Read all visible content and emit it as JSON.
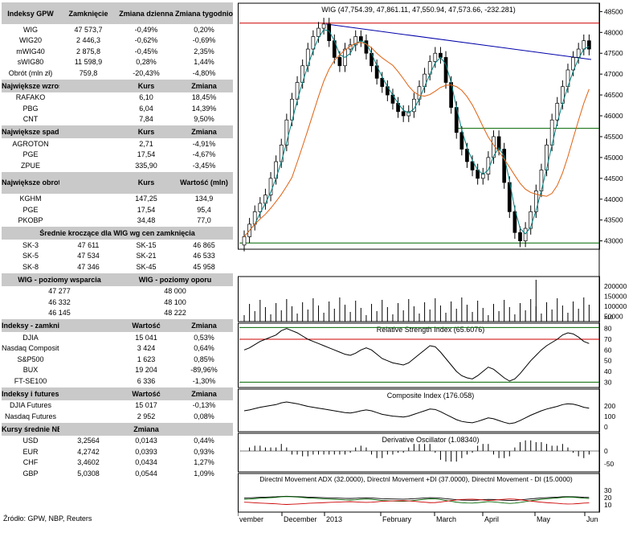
{
  "tables": [
    {
      "header": [
        "Indeksy GPW",
        "Zamknięcie",
        "Zmiana dzienna",
        "Zmiana tygodniowa"
      ],
      "tall": true,
      "rows": [
        [
          "WIG",
          "47 573,7",
          "-0,49%",
          "0,20%"
        ],
        [
          "WIG20",
          "2 446,3",
          "-0,62%",
          "-0,69%"
        ],
        [
          "mWIG40",
          "2 875,8",
          "-0,45%",
          "2,35%"
        ],
        [
          "sWIG80",
          "11 598,9",
          "0,28%",
          "1,44%"
        ],
        [
          "Obrót (mln zł)",
          "759,8",
          "-20,43%",
          "-4,80%"
        ]
      ]
    },
    {
      "header": [
        "Największe wzrosty",
        "",
        "Kurs",
        "Zmiana"
      ],
      "rows": [
        [
          "RAFAKO",
          "",
          "6,10",
          "18,45%"
        ],
        [
          "PBG",
          "",
          "6,04",
          "14,39%"
        ],
        [
          "CNT",
          "",
          "7,84",
          "9,50%"
        ]
      ]
    },
    {
      "header": [
        "Największe spadki",
        "",
        "Kurs",
        "Zmiana"
      ],
      "rows": [
        [
          "AGROTON",
          "",
          "2,71",
          "-4,91%"
        ],
        [
          "PGE",
          "",
          "17,54",
          "-4,67%"
        ],
        [
          "ZPUE",
          "",
          "335,90",
          "-3,45%"
        ]
      ]
    },
    {
      "header": [
        "Największe obroty",
        "",
        "Kurs",
        "Wartość (mln)"
      ],
      "tall": true,
      "rows": [
        [
          "KGHM",
          "",
          "147,25",
          "134,9"
        ],
        [
          "PGE",
          "",
          "17,54",
          "95,4"
        ],
        [
          "PKOBP",
          "",
          "34,48",
          "77,0"
        ]
      ]
    },
    {
      "header": [
        "Średnie kroczące dla WIG wg cen zamknięcia"
      ],
      "rows": [
        [
          "SK-3",
          "47 611",
          "SK-15",
          "46 865"
        ],
        [
          "SK-5",
          "47 534",
          "SK-21",
          "46 533"
        ],
        [
          "SK-8",
          "47 346",
          "SK-45",
          "45 958"
        ]
      ]
    },
    {
      "header": [
        "WIG - poziomy wsparcia",
        "WIG - poziomy oporu"
      ],
      "rows": [
        [
          "47 277",
          "48 000"
        ],
        [
          "46 332",
          "48 100"
        ],
        [
          "46 145",
          "48 222"
        ]
      ]
    },
    {
      "header": [
        "Indeksy - zamknięcia",
        "",
        "Wartość",
        "Zmiana"
      ],
      "rows": [
        [
          "DJIA",
          "",
          "15 041",
          "0,53%"
        ],
        [
          "Nasdaq Composite",
          "",
          "3 424",
          "0,64%"
        ],
        [
          "S&P500",
          "",
          "1 623",
          "0,85%"
        ],
        [
          "BUX",
          "",
          "19 204",
          "-89,96%"
        ],
        [
          "FT-SE100",
          "",
          "6 336",
          "-1,30%"
        ]
      ]
    },
    {
      "header": [
        "Indeksy i futures - bieżące",
        "",
        "Wartość",
        "Zmiana"
      ],
      "rows": [
        [
          "DJIA Futures",
          "",
          "15 017",
          "-0,13%"
        ],
        [
          "Nasdaq Futures",
          "",
          "2 952",
          "0,08%"
        ]
      ]
    },
    {
      "header": [
        "Kursy średnie NBP",
        "",
        "Zmiana",
        ""
      ],
      "rows": [
        [
          "USD",
          "3,2564",
          "0,0143",
          "0,44%"
        ],
        [
          "EUR",
          "4,2742",
          "0,0393",
          "0,93%"
        ],
        [
          "CHF",
          "3,4602",
          "0,0434",
          "1,27%"
        ],
        [
          "GBP",
          "5,0308",
          "0,0544",
          "1,09%"
        ]
      ]
    }
  ],
  "source": "Źródło: GPW, NBP, Reuters",
  "chart_data": [
    {
      "type": "candlestick",
      "title": "WIG (47,754.39, 47,861.11, 47,550.94, 47,573.66, -232.281)",
      "ylim": [
        42800,
        48700
      ],
      "yticks": [
        "48500",
        "48000",
        "47500",
        "47000",
        "46500",
        "46000",
        "45500",
        "45000",
        "44500",
        "44000",
        "43500",
        "43000"
      ],
      "xlabels": [
        "vember",
        "December",
        "2013",
        "February",
        "March",
        "April",
        "May",
        "Jun"
      ],
      "close": [
        43100,
        43400,
        43700,
        43900,
        44100,
        44500,
        44900,
        45300,
        45900,
        46400,
        46800,
        47200,
        47600,
        47900,
        48100,
        48200,
        47800,
        47400,
        47200,
        47600,
        47700,
        47900,
        47800,
        47500,
        47200,
        46900,
        46700,
        46500,
        46300,
        46100,
        46000,
        46100,
        46400,
        46700,
        47000,
        47300,
        47500,
        47400,
        46800,
        46200,
        45600,
        45200,
        44900,
        44700,
        44500,
        44600,
        45000,
        45500,
        45200,
        44400,
        43700,
        43200,
        43000,
        43300,
        43700,
        44200,
        44700,
        45300,
        45900,
        46300,
        46700,
        47100,
        47400,
        47600,
        47800,
        47600
      ],
      "resistance": 48222,
      "support1": 45700,
      "support2": 42950
    },
    {
      "type": "bar",
      "title": "Volume",
      "yticks": [
        "200000",
        "150000",
        "100000",
        "50000"
      ],
      "unit": "x10"
    },
    {
      "type": "line",
      "title": "Relative Strength Index (65.6076)",
      "yticks": [
        "80",
        "70",
        "60",
        "50",
        "40",
        "30"
      ],
      "levels": [
        70,
        30
      ],
      "values": [
        60,
        62,
        65,
        68,
        70,
        72,
        74,
        78,
        80,
        78,
        76,
        73,
        70,
        68,
        66,
        64,
        62,
        60,
        58,
        56,
        55,
        57,
        60,
        62,
        60,
        56,
        52,
        50,
        48,
        47,
        46,
        48,
        52,
        56,
        60,
        64,
        63,
        58,
        52,
        46,
        40,
        36,
        34,
        33,
        36,
        40,
        44,
        42,
        38,
        34,
        31,
        33,
        38,
        44,
        50,
        55,
        60,
        64,
        67,
        70,
        74,
        76,
        75,
        72,
        68,
        66
      ]
    },
    {
      "type": "line",
      "title": "Composite Index (176.058)",
      "yticks": [
        "200",
        "100",
        "0"
      ]
    },
    {
      "type": "bar",
      "title": "Derivative Oscillator (1.08340)",
      "yticks": [
        "0",
        "-50"
      ]
    },
    {
      "type": "line",
      "title": "Directnl Movement ADX (32.0000), Directnl Movement +DI (37.0000), Directnl Movement - DI (15.0000)",
      "yticks": [
        "30",
        "20",
        "10"
      ]
    }
  ]
}
